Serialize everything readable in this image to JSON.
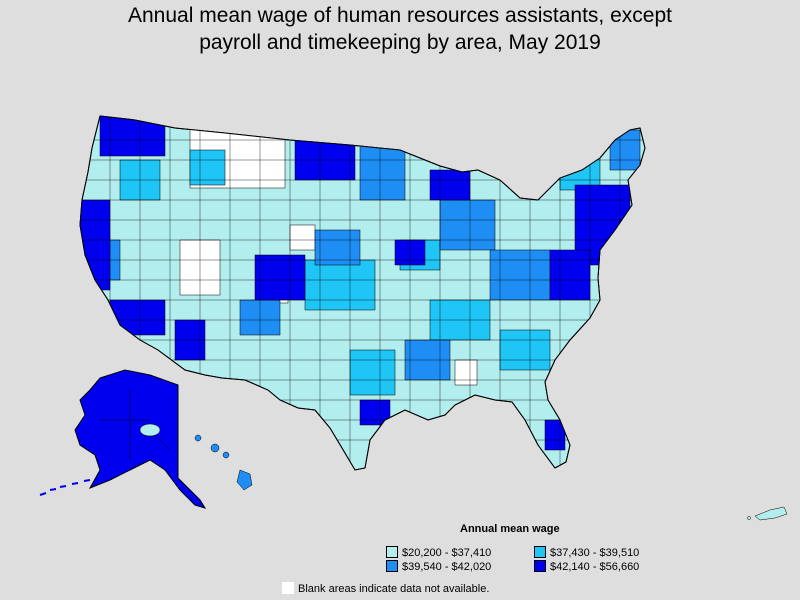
{
  "title": {
    "line1": "Annual mean wage of human resources assistants, except",
    "line2": "payroll and timekeeping by area, May 2019"
  },
  "legend": {
    "title": "Annual mean wage",
    "items": [
      {
        "label": "$20,200 - $37,410",
        "color": "#b3eeee"
      },
      {
        "label": "$37,430 - $39,510",
        "color": "#1ec5f5"
      },
      {
        "label": "$39,540 - $42,020",
        "color": "#1e8ef5"
      },
      {
        "label": "$42,140 - $56,660",
        "color": "#0000ee"
      }
    ]
  },
  "note": "Blank areas indicate data not available.",
  "colors": {
    "background": "#dedede",
    "blank": "#ffffff",
    "border": "#000000"
  }
}
